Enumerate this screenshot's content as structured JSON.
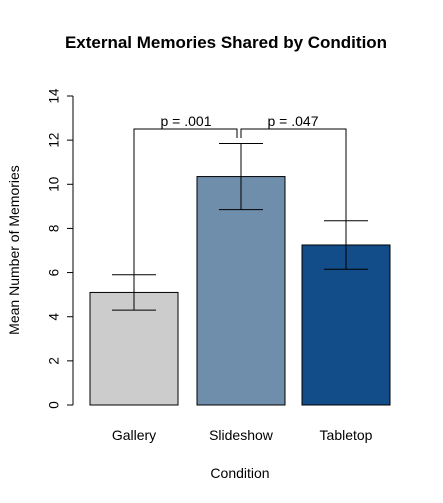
{
  "chart_data": {
    "type": "bar",
    "title": "External Memories Shared by Condition",
    "xlabel": "Condition",
    "ylabel": "Mean Number of Memories",
    "ylim": [
      0,
      14
    ],
    "yticks": [
      0,
      2,
      4,
      6,
      8,
      10,
      12,
      14
    ],
    "categories": [
      "Gallery",
      "Slideshow",
      "Tabletop"
    ],
    "values": [
      5.1,
      10.35,
      7.25
    ],
    "error_bars": [
      {
        "low": 4.3,
        "high": 5.9
      },
      {
        "low": 8.85,
        "high": 11.85
      },
      {
        "low": 6.15,
        "high": 8.35
      }
    ],
    "colors": [
      "#cccccc",
      "#6e8eac",
      "#124d89"
    ],
    "significance": [
      {
        "pair": [
          "Gallery",
          "Slideshow"
        ],
        "label": "p = .001"
      },
      {
        "pair": [
          "Slideshow",
          "Tabletop"
        ],
        "label": "p = .047"
      }
    ]
  }
}
